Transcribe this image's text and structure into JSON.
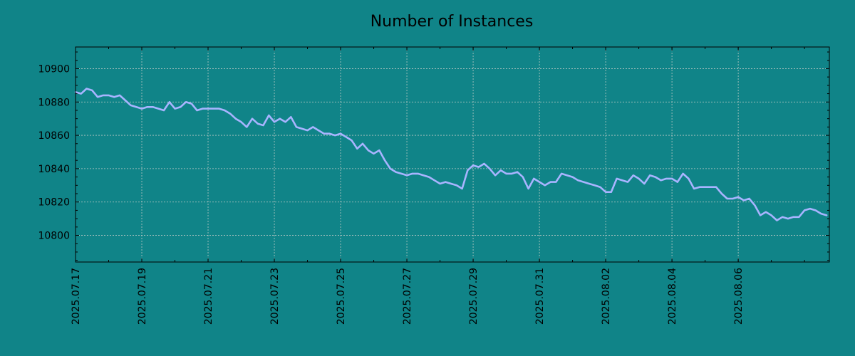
{
  "colors": {
    "background": "#108488",
    "series_line": "#a8b4ff"
  },
  "chart_data": {
    "type": "line",
    "title": "Number of Instances",
    "xlabel": "",
    "ylabel": "",
    "x_type": "date",
    "xlim": [
      "2025-07-17",
      "2025-08-08T18:00"
    ],
    "ylim": [
      10784,
      10913
    ],
    "grid": true,
    "x_ticks": [
      "2025.07.17",
      "2025.07.19",
      "2025.07.21",
      "2025.07.23",
      "2025.07.25",
      "2025.07.27",
      "2025.07.29",
      "2025.07.31",
      "2025.08.02",
      "2025.08.04",
      "2025.08.06"
    ],
    "y_ticks": [
      "10800",
      "10820",
      "10840",
      "10860",
      "10880",
      "10900"
    ],
    "series": [
      {
        "color": "#a8b4ff",
        "points": [
          [
            "2025-07-17T00:00",
            10886
          ],
          [
            "2025-07-17T04:00",
            10885
          ],
          [
            "2025-07-17T08:00",
            10888
          ],
          [
            "2025-07-17T12:00",
            10887
          ],
          [
            "2025-07-17T16:00",
            10883
          ],
          [
            "2025-07-17T20:00",
            10884
          ],
          [
            "2025-07-18T00:00",
            10884
          ],
          [
            "2025-07-18T04:00",
            10883
          ],
          [
            "2025-07-18T08:00",
            10884
          ],
          [
            "2025-07-18T12:00",
            10881
          ],
          [
            "2025-07-18T16:00",
            10878
          ],
          [
            "2025-07-18T20:00",
            10877
          ],
          [
            "2025-07-19T00:00",
            10876
          ],
          [
            "2025-07-19T04:00",
            10877
          ],
          [
            "2025-07-19T08:00",
            10877
          ],
          [
            "2025-07-19T12:00",
            10876
          ],
          [
            "2025-07-19T16:00",
            10875
          ],
          [
            "2025-07-19T20:00",
            10880
          ],
          [
            "2025-07-20T00:00",
            10876
          ],
          [
            "2025-07-20T04:00",
            10877
          ],
          [
            "2025-07-20T08:00",
            10880
          ],
          [
            "2025-07-20T12:00",
            10879
          ],
          [
            "2025-07-20T16:00",
            10875
          ],
          [
            "2025-07-20T20:00",
            10876
          ],
          [
            "2025-07-21T00:00",
            10876
          ],
          [
            "2025-07-21T08:00",
            10876
          ],
          [
            "2025-07-21T12:00",
            10875
          ],
          [
            "2025-07-21T16:00",
            10873
          ],
          [
            "2025-07-21T20:00",
            10870
          ],
          [
            "2025-07-22T00:00",
            10868
          ],
          [
            "2025-07-22T04:00",
            10865
          ],
          [
            "2025-07-22T08:00",
            10870
          ],
          [
            "2025-07-22T12:00",
            10867
          ],
          [
            "2025-07-22T16:00",
            10866
          ],
          [
            "2025-07-22T20:00",
            10872
          ],
          [
            "2025-07-23T00:00",
            10868
          ],
          [
            "2025-07-23T04:00",
            10870
          ],
          [
            "2025-07-23T08:00",
            10868
          ],
          [
            "2025-07-23T12:00",
            10871
          ],
          [
            "2025-07-23T16:00",
            10865
          ],
          [
            "2025-07-23T20:00",
            10864
          ],
          [
            "2025-07-24T00:00",
            10863
          ],
          [
            "2025-07-24T04:00",
            10865
          ],
          [
            "2025-07-24T08:00",
            10863
          ],
          [
            "2025-07-24T12:00",
            10861
          ],
          [
            "2025-07-24T16:00",
            10861
          ],
          [
            "2025-07-24T20:00",
            10860
          ],
          [
            "2025-07-25T00:00",
            10861
          ],
          [
            "2025-07-25T04:00",
            10859
          ],
          [
            "2025-07-25T08:00",
            10857
          ],
          [
            "2025-07-25T12:00",
            10852
          ],
          [
            "2025-07-25T16:00",
            10855
          ],
          [
            "2025-07-25T20:00",
            10851
          ],
          [
            "2025-07-26T00:00",
            10849
          ],
          [
            "2025-07-26T04:00",
            10851
          ],
          [
            "2025-07-26T08:00",
            10845
          ],
          [
            "2025-07-26T12:00",
            10840
          ],
          [
            "2025-07-26T16:00",
            10838
          ],
          [
            "2025-07-26T20:00",
            10837
          ],
          [
            "2025-07-27T00:00",
            10836
          ],
          [
            "2025-07-27T04:00",
            10837
          ],
          [
            "2025-07-27T08:00",
            10837
          ],
          [
            "2025-07-27T12:00",
            10836
          ],
          [
            "2025-07-27T16:00",
            10835
          ],
          [
            "2025-07-27T20:00",
            10833
          ],
          [
            "2025-07-28T00:00",
            10831
          ],
          [
            "2025-07-28T04:00",
            10832
          ],
          [
            "2025-07-28T08:00",
            10831
          ],
          [
            "2025-07-28T12:00",
            10830
          ],
          [
            "2025-07-28T16:00",
            10828
          ],
          [
            "2025-07-28T20:00",
            10839
          ],
          [
            "2025-07-29T00:00",
            10842
          ],
          [
            "2025-07-29T04:00",
            10841
          ],
          [
            "2025-07-29T08:00",
            10843
          ],
          [
            "2025-07-29T12:00",
            10840
          ],
          [
            "2025-07-29T16:00",
            10836
          ],
          [
            "2025-07-29T20:00",
            10839
          ],
          [
            "2025-07-30T00:00",
            10837
          ],
          [
            "2025-07-30T04:00",
            10837
          ],
          [
            "2025-07-30T08:00",
            10838
          ],
          [
            "2025-07-30T12:00",
            10835
          ],
          [
            "2025-07-30T16:00",
            10828
          ],
          [
            "2025-07-30T20:00",
            10834
          ],
          [
            "2025-07-31T00:00",
            10832
          ],
          [
            "2025-07-31T04:00",
            10830
          ],
          [
            "2025-07-31T08:00",
            10832
          ],
          [
            "2025-07-31T12:00",
            10832
          ],
          [
            "2025-07-31T16:00",
            10837
          ],
          [
            "2025-07-31T20:00",
            10836
          ],
          [
            "2025-08-01T00:00",
            10835
          ],
          [
            "2025-08-01T04:00",
            10833
          ],
          [
            "2025-08-01T08:00",
            10832
          ],
          [
            "2025-08-01T12:00",
            10831
          ],
          [
            "2025-08-01T16:00",
            10830
          ],
          [
            "2025-08-01T20:00",
            10829
          ],
          [
            "2025-08-02T00:00",
            10826
          ],
          [
            "2025-08-02T04:00",
            10826
          ],
          [
            "2025-08-02T08:00",
            10834
          ],
          [
            "2025-08-02T12:00",
            10833
          ],
          [
            "2025-08-02T16:00",
            10832
          ],
          [
            "2025-08-02T20:00",
            10836
          ],
          [
            "2025-08-03T00:00",
            10834
          ],
          [
            "2025-08-03T04:00",
            10831
          ],
          [
            "2025-08-03T08:00",
            10836
          ],
          [
            "2025-08-03T12:00",
            10835
          ],
          [
            "2025-08-03T16:00",
            10833
          ],
          [
            "2025-08-03T20:00",
            10834
          ],
          [
            "2025-08-04T00:00",
            10834
          ],
          [
            "2025-08-04T04:00",
            10832
          ],
          [
            "2025-08-04T08:00",
            10837
          ],
          [
            "2025-08-04T12:00",
            10834
          ],
          [
            "2025-08-04T16:00",
            10828
          ],
          [
            "2025-08-04T20:00",
            10829
          ],
          [
            "2025-08-05T00:00",
            10829
          ],
          [
            "2025-08-05T04:00",
            10829
          ],
          [
            "2025-08-05T08:00",
            10829
          ],
          [
            "2025-08-05T12:00",
            10825
          ],
          [
            "2025-08-05T16:00",
            10822
          ],
          [
            "2025-08-05T20:00",
            10822
          ],
          [
            "2025-08-06T00:00",
            10823
          ],
          [
            "2025-08-06T04:00",
            10821
          ],
          [
            "2025-08-06T08:00",
            10822
          ],
          [
            "2025-08-06T12:00",
            10818
          ],
          [
            "2025-08-06T16:00",
            10812
          ],
          [
            "2025-08-06T20:00",
            10814
          ],
          [
            "2025-08-07T00:00",
            10812
          ],
          [
            "2025-08-07T04:00",
            10809
          ],
          [
            "2025-08-07T08:00",
            10811
          ],
          [
            "2025-08-07T12:00",
            10810
          ],
          [
            "2025-08-07T16:00",
            10811
          ],
          [
            "2025-08-07T20:00",
            10811
          ],
          [
            "2025-08-08T00:00",
            10815
          ],
          [
            "2025-08-08T04:00",
            10816
          ],
          [
            "2025-08-08T08:00",
            10815
          ],
          [
            "2025-08-08T12:00",
            10813
          ],
          [
            "2025-08-08T16:00",
            10812
          ]
        ]
      }
    ]
  }
}
